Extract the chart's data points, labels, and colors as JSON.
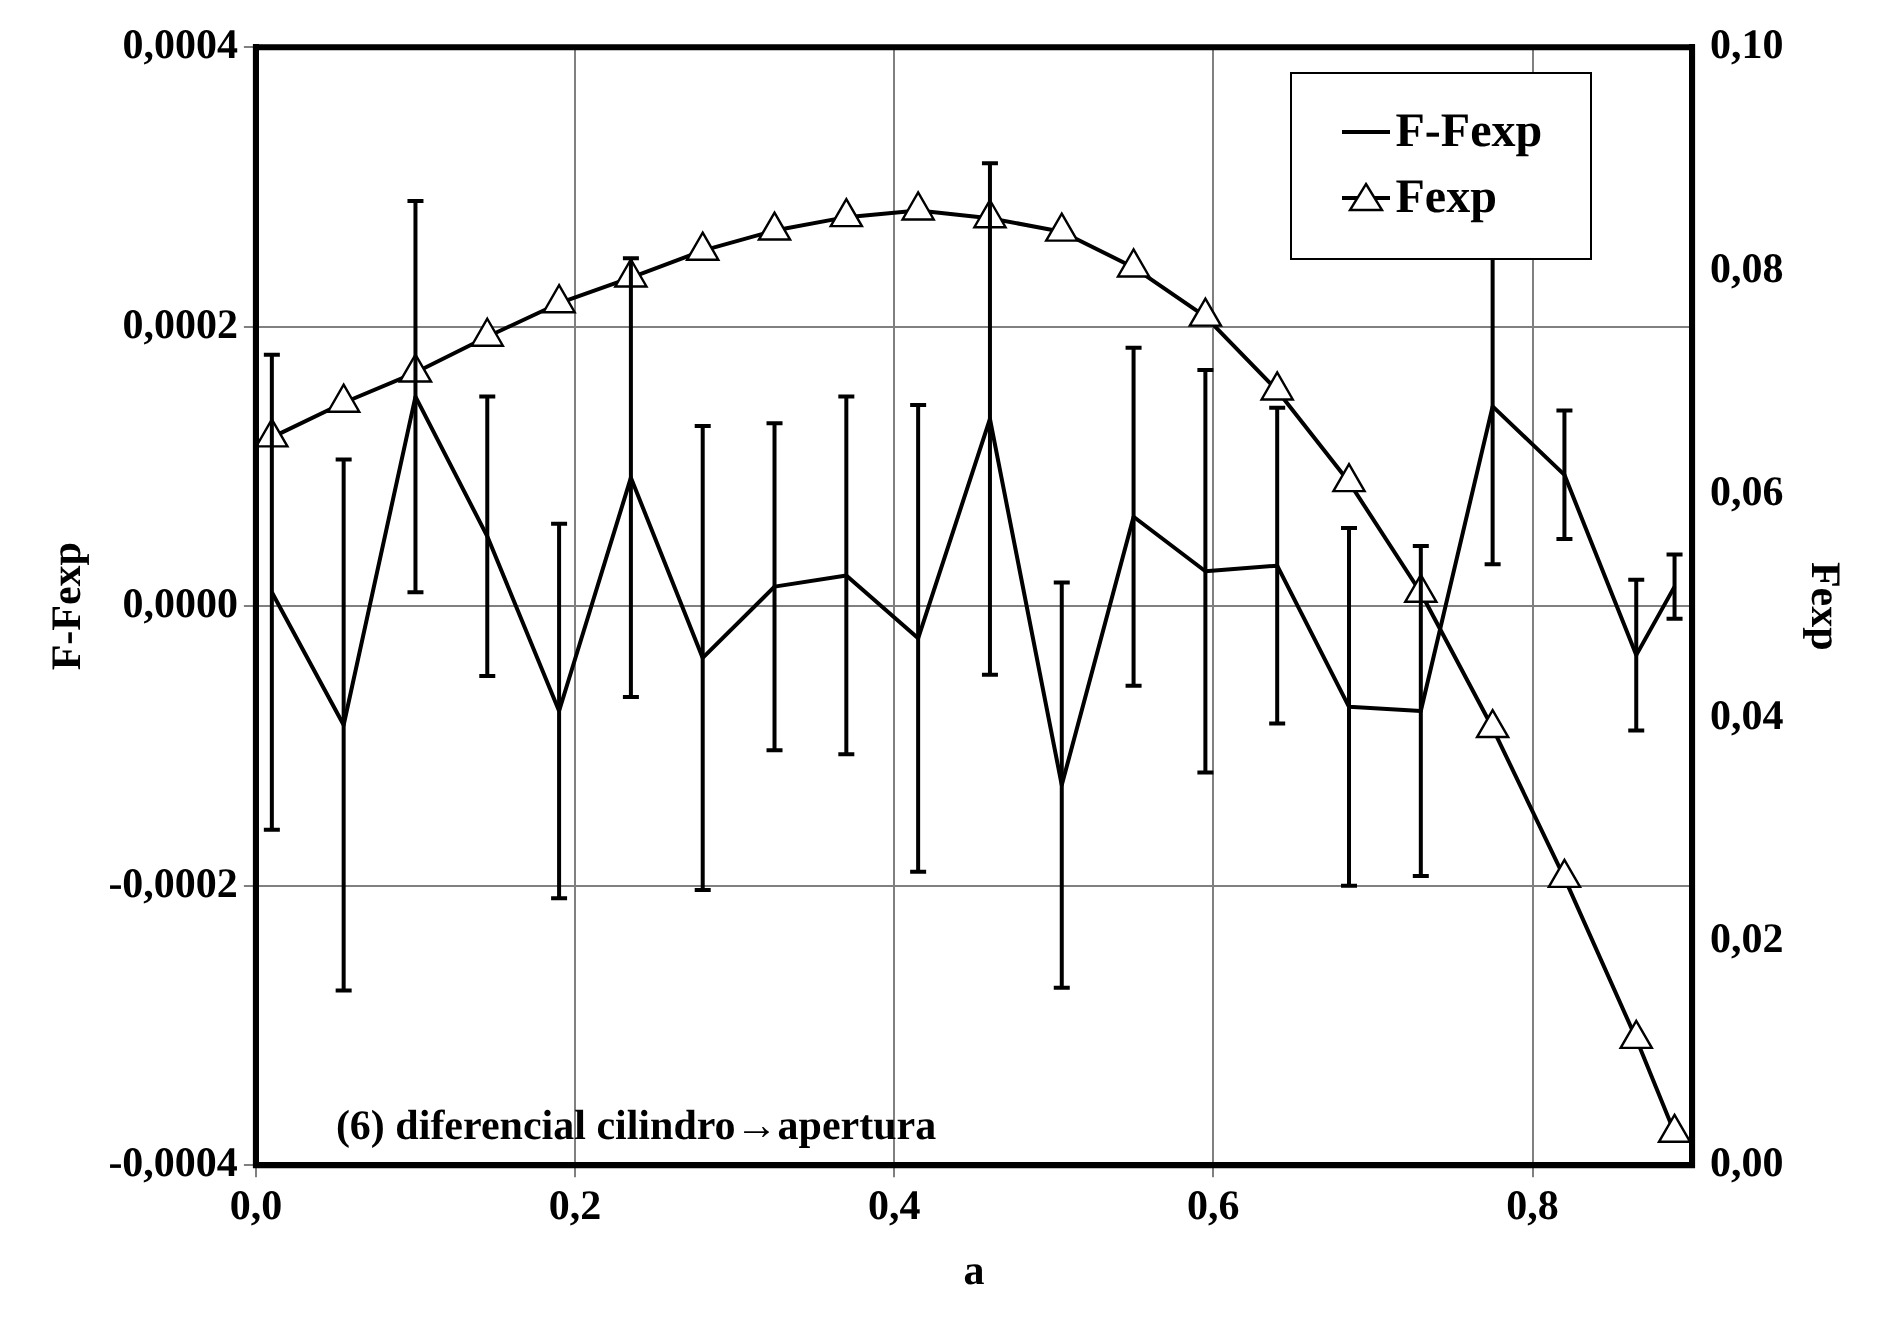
{
  "chart_data": {
    "type": "line",
    "xlabel": "a",
    "ylabel": "F-Fexp",
    "y2label": "Fexp",
    "x": [
      0.01,
      0.055,
      0.1,
      0.145,
      0.19,
      0.235,
      0.28,
      0.325,
      0.37,
      0.415,
      0.46,
      0.505,
      0.55,
      0.595,
      0.64,
      0.685,
      0.73,
      0.775,
      0.82,
      0.865,
      0.889
    ],
    "series": [
      {
        "name": "F-Fexp",
        "color": "#000000",
        "marker": "none",
        "values": [
          1e-05,
          -8.5e-05,
          0.00015,
          5e-05,
          -7.5e-05,
          9.2e-05,
          -3.7e-05,
          1.4e-05,
          2.2e-05,
          -2.3e-05,
          0.000134,
          -0.000128,
          6.4e-05,
          2.5e-05,
          2.9e-05,
          -7.2e-05,
          -7.5e-05,
          0.000143,
          9.4e-05,
          -3.5e-05,
          1.4e-05
        ],
        "errors": [
          0.00017,
          0.00019,
          0.00014,
          0.0001,
          0.000134,
          0.000157,
          0.000166,
          0.000117,
          0.000128,
          0.000167,
          0.000183,
          0.000145,
          0.000121,
          0.000144,
          0.000113,
          0.000128,
          0.000118,
          0.000113,
          4.6e-05,
          5.4e-05,
          2.3e-05
        ]
      },
      {
        "name": "Fexp",
        "color": "#000000",
        "marker": "triangle",
        "axis": "y2",
        "values": [
          0.0651,
          0.0682,
          0.0709,
          0.0741,
          0.0771,
          0.0794,
          0.0818,
          0.0836,
          0.0848,
          0.0854,
          0.0847,
          0.0835,
          0.0803,
          0.0759,
          0.0693,
          0.0611,
          0.0512,
          0.0391,
          0.0257,
          0.0113,
          0.0029
        ]
      }
    ],
    "xlim": [
      0,
      0.9
    ],
    "xticks": [
      {
        "value": 0,
        "label": "0,0"
      },
      {
        "value": 0.2,
        "label": "0,2"
      },
      {
        "value": 0.4,
        "label": "0,4"
      },
      {
        "value": 0.6,
        "label": "0,6"
      },
      {
        "value": 0.8,
        "label": "0,8"
      }
    ],
    "ylim": [
      -0.0004,
      0.0004
    ],
    "yticks": [
      {
        "value": -0.0004,
        "label": "-0,0004"
      },
      {
        "value": -0.0002,
        "label": "-0,0002"
      },
      {
        "value": 0,
        "label": "0,0000"
      },
      {
        "value": 0.0002,
        "label": "0,0002"
      },
      {
        "value": 0.0004,
        "label": "0,0004"
      }
    ],
    "y2lim": [
      0,
      0.1
    ],
    "y2ticks": [
      {
        "value": 0,
        "label": "0,00"
      },
      {
        "value": 0.02,
        "label": "0,02"
      },
      {
        "value": 0.04,
        "label": "0,04"
      },
      {
        "value": 0.06,
        "label": "0,06"
      },
      {
        "value": 0.08,
        "label": "0,08"
      },
      {
        "value": 0.1,
        "label": "0,10"
      }
    ],
    "annotations": [
      "(6) diferencial cilindro→apertura"
    ],
    "grid": true,
    "legend": "top right"
  }
}
